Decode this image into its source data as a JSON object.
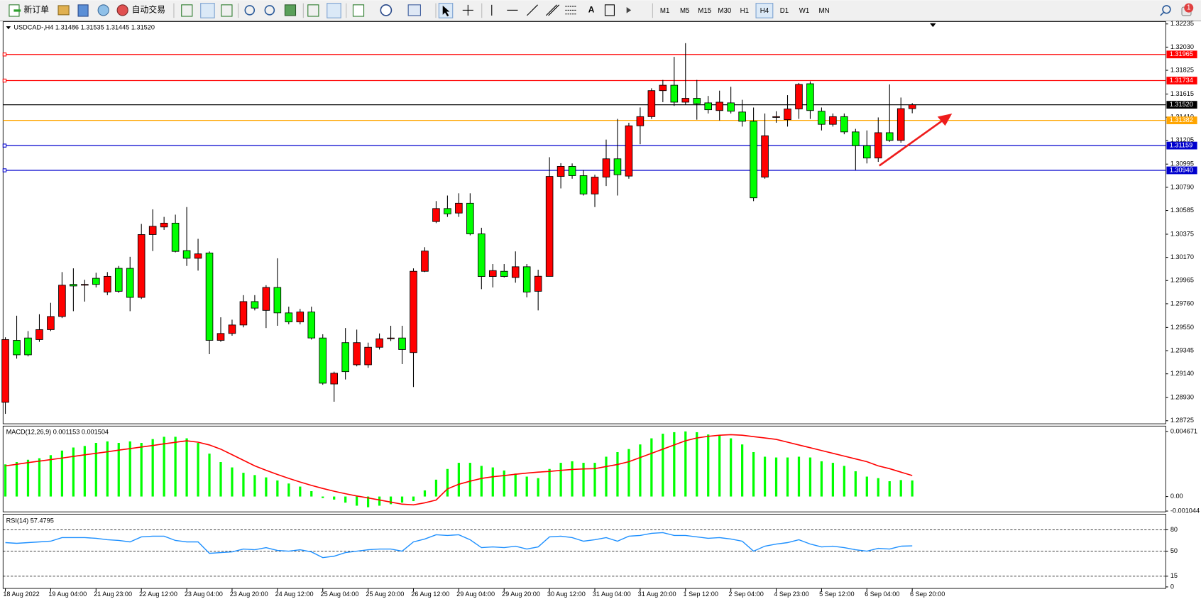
{
  "toolbar": {
    "new_order": "新订单",
    "auto_trading": "自动交易",
    "text_tool": "A",
    "timeframes": [
      "M1",
      "M5",
      "M15",
      "M30",
      "H1",
      "H4",
      "D1",
      "W1",
      "MN"
    ],
    "selected_timeframe": "H4",
    "notifications": 1
  },
  "chart_data": [
    {
      "type": "candlestick",
      "title": "USDCAD-,H4 1.31486 1.31535 1.31445 1.31520",
      "categories": [
        "18 Aug 2022",
        null,
        null,
        null,
        "19 Aug 04:00",
        null,
        null,
        null,
        "21 Aug 23:00",
        null,
        null,
        null,
        "22 Aug 12:00",
        null,
        null,
        null,
        "23 Aug 04:00",
        null,
        null,
        null,
        "23 Aug 20:00",
        null,
        null,
        null,
        "24 Aug 12:00",
        null,
        null,
        null,
        "25 Aug 04:00",
        null,
        null,
        null,
        "25 Aug 20:00",
        null,
        null,
        null,
        "26 Aug 12:00",
        null,
        null,
        null,
        "29 Aug 04:00",
        null,
        null,
        null,
        "29 Aug 20:00",
        null,
        null,
        null,
        "30 Aug 12:00",
        null,
        null,
        null,
        "31 Aug 04:00",
        null,
        null,
        null,
        "31 Aug 20:00",
        null,
        null,
        null,
        "1 Sep 12:00",
        null,
        null,
        null,
        "2 Sep 04:00",
        null,
        null,
        null,
        "4 Sep 23:00",
        null,
        null,
        null,
        "5 Sep 12:00",
        null,
        null,
        null,
        "6 Sep 04:00",
        null,
        null,
        null,
        "6 Sep 20:00"
      ],
      "open": [
        1.28888,
        1.29436,
        1.29457,
        1.29443,
        1.29531,
        1.29647,
        1.29931,
        1.29924,
        1.29985,
        1.29863,
        1.30073,
        1.30073,
        1.29816,
        1.30372,
        1.30439,
        1.30473,
        1.3023,
        1.30162,
        1.30209,
        1.29436,
        1.29497,
        1.29572,
        1.29779,
        1.29701,
        1.29904,
        1.29679,
        1.29599,
        1.29687,
        1.29457,
        1.2905,
        1.29416,
        1.2922,
        1.2922,
        1.29375,
        1.2945,
        1.29457,
        1.29328,
        1.30047,
        1.30487,
        1.30602,
        1.30562,
        1.30649,
        1.30378,
        1.30001,
        1.30047,
        1.29992,
        1.30087,
        1.2987,
        1.30002,
        1.30886,
        1.30975,
        1.30893,
        1.30731,
        1.3088,
        1.31042,
        1.30889,
        1.31334,
        1.31415,
        1.31645,
        1.31693,
        1.31543,
        1.31577,
        1.31537,
        1.31469,
        1.31537,
        1.31456,
        1.31374,
        1.3088,
        1.31408,
        1.31388,
        1.31483,
        1.31706,
        1.31463,
        1.31347,
        1.31415,
        1.3128,
        1.31158,
        1.31049,
        1.31273,
        1.31205,
        1.31486
      ],
      "high": [
        1.29463,
        1.29654,
        1.29518,
        1.29667,
        1.29768,
        1.3004,
        1.30073,
        1.29972,
        1.30034,
        1.3004,
        1.30094,
        1.30175,
        1.30466,
        1.30595,
        1.30528,
        1.30548,
        1.30615,
        1.30334,
        1.30223,
        1.2964,
        1.29619,
        1.29836,
        1.29836,
        1.29924,
        1.30162,
        1.29734,
        1.29714,
        1.29734,
        1.2949,
        1.29159,
        1.29545,
        1.29531,
        1.29416,
        1.29497,
        1.29565,
        1.29565,
        1.30073,
        1.3026,
        1.30668,
        1.30717,
        1.30737,
        1.30737,
        1.30432,
        1.30111,
        1.30111,
        1.30223,
        1.30111,
        1.30061,
        1.31056,
        1.31003,
        1.31001,
        1.30942,
        1.30901,
        1.31212,
        1.31395,
        1.31361,
        1.31496,
        1.31666,
        1.3174,
        1.31944,
        1.32065,
        1.3174,
        1.31598,
        1.31645,
        1.31679,
        1.31564,
        1.31496,
        1.31443,
        1.31463,
        1.31605,
        1.31713,
        1.31727,
        1.31496,
        1.31443,
        1.31443,
        1.31307,
        1.31293,
        1.31408,
        1.317,
        1.31584,
        1.31535
      ],
      "low": [
        1.28786,
        1.29274,
        1.29294,
        1.29423,
        1.29518,
        1.29633,
        1.29694,
        1.29779,
        1.29904,
        1.29836,
        1.29856,
        1.29694,
        1.29802,
        1.30226,
        1.30413,
        1.30214,
        1.30094,
        1.30053,
        1.29314,
        1.29423,
        1.29477,
        1.29551,
        1.29701,
        1.29545,
        1.29565,
        1.29578,
        1.29578,
        1.29443,
        1.29043,
        1.28893,
        1.2909,
        1.29206,
        1.29193,
        1.29355,
        1.2943,
        1.29226,
        1.29023,
        1.3004,
        1.30473,
        1.30528,
        1.30528,
        1.30365,
        1.29889,
        1.29904,
        1.29992,
        1.29946,
        1.29816,
        1.29701,
        1.30001,
        1.3078,
        1.30866,
        1.30717,
        1.30615,
        1.30801,
        1.30717,
        1.30866,
        1.31171,
        1.31395,
        1.31543,
        1.3151,
        1.31523,
        1.31388,
        1.31443,
        1.31381,
        1.31443,
        1.31327,
        1.30668,
        1.30866,
        1.31361,
        1.31327,
        1.31395,
        1.31395,
        1.31293,
        1.31327,
        1.31259,
        1.30942,
        1.31001,
        1.31015,
        1.31192,
        1.31185,
        1.31445
      ],
      "close": [
        1.29443,
        1.29308,
        1.29308,
        1.29531,
        1.29647,
        1.29924,
        1.29917,
        1.29931,
        1.29931,
        1.30002,
        1.2987,
        1.29816,
        1.30372,
        1.30445,
        1.30473,
        1.30223,
        1.30162,
        1.30201,
        1.29436,
        1.29497,
        1.29572,
        1.29779,
        1.29721,
        1.29904,
        1.29679,
        1.29599,
        1.29687,
        1.29457,
        1.29057,
        1.29145,
        1.29159,
        1.29416,
        1.29375,
        1.2945,
        1.29457,
        1.29355,
        1.30047,
        1.30226,
        1.30602,
        1.30555,
        1.30649,
        1.30378,
        1.30001,
        1.30053,
        1.30001,
        1.30087,
        1.29863,
        1.30003,
        1.30886,
        1.30975,
        1.30893,
        1.30731,
        1.3088,
        1.31042,
        1.30901,
        1.31334,
        1.31415,
        1.31645,
        1.31693,
        1.31543,
        1.31577,
        1.3153,
        1.31476,
        1.31543,
        1.31463,
        1.31374,
        1.30697,
        1.31246,
        1.31415,
        1.31483,
        1.317,
        1.31469,
        1.31347,
        1.31415,
        1.3128,
        1.31158,
        1.31049,
        1.31273,
        1.31205,
        1.31486,
        1.3152
      ],
      "up_color": "#ff0000",
      "down_color": "#00ff00",
      "ylim": [
        1.28698,
        1.32255
      ],
      "yticks": [
        1.32235,
        {
          "value": 1.3203,
          "label": "1.32030"
        },
        1.31825,
        1.31615,
        {
          "value": 1.3141,
          "label": "1.31410"
        },
        1.31205,
        1.30995,
        {
          "value": 1.3079,
          "label": "1.30790"
        },
        1.30585,
        1.30375,
        {
          "value": 1.3017,
          "label": "1.30170"
        },
        1.29965,
        {
          "value": 1.2976,
          "label": "1.29760"
        },
        {
          "value": 1.2955,
          "label": "1.29550"
        },
        1.29345,
        {
          "value": 1.2914,
          "label": "1.29140"
        },
        {
          "value": 1.2893,
          "label": "1.28930"
        },
        1.28725
      ],
      "levels": [
        {
          "value": 1.31965,
          "color": "#ff0000"
        },
        {
          "value": 1.31734,
          "color": "#ff0000"
        },
        {
          "value": 1.3152,
          "label": "1.31520",
          "color": "#000000"
        },
        {
          "value": 1.31382,
          "color": "#ffa500"
        },
        {
          "value": 1.31159,
          "color": "#0000cd"
        },
        {
          "value": 1.3094,
          "label": "1.30940",
          "color": "#0000cd"
        }
      ],
      "grid": false
    },
    {
      "type": "macd",
      "title": "MACD(12,26,9) 0.001153 0.001504",
      "color": "#00ff00",
      "signal_color": "#ff0000",
      "values": [
        0.002308,
        0.002473,
        0.002638,
        0.002748,
        0.002967,
        0.003297,
        0.003517,
        0.003627,
        0.003847,
        0.003956,
        0.003847,
        0.003956,
        0.003847,
        0.004121,
        0.004286,
        0.004286,
        0.004176,
        0.003847,
        0.003077,
        0.002473,
        0.002088,
        0.001703,
        0.001539,
        0.001374,
        0.001154,
        0.000934,
        0.000714,
        0.000385,
        -0.00011,
        -0.00022,
        -0.00044,
        -0.000659,
        -0.000769,
        -0.000659,
        -0.00055,
        -0.00044,
        -0.00033,
        0.00044,
        0.001209,
        0.001978,
        0.002418,
        0.002418,
        0.002198,
        0.002088,
        0.001868,
        0.001649,
        0.001429,
        0.001319,
        0.001978,
        0.002418,
        0.002528,
        0.002418,
        0.002418,
        0.002857,
        0.003187,
        0.003407,
        0.003737,
        0.004176,
        0.004506,
        0.004616,
        0.004671,
        0.004616,
        0.004451,
        0.004396,
        0.004176,
        0.003737,
        0.003187,
        0.002857,
        0.002802,
        0.002802,
        0.002857,
        0.002802,
        0.002528,
        0.002418,
        0.002198,
        0.001813,
        0.001429,
        0.001319,
        0.001099,
        0.00118,
        0.001153
      ],
      "signal": [
        0.0022,
        0.00231,
        0.00243,
        0.00254,
        0.00265,
        0.00276,
        0.00288,
        0.00299,
        0.0031,
        0.00321,
        0.00333,
        0.00344,
        0.00355,
        0.00366,
        0.00378,
        0.00389,
        0.004,
        0.0039,
        0.0037,
        0.0034,
        0.003,
        0.0026,
        0.0022,
        0.00188,
        0.00158,
        0.0013,
        0.00104,
        0.0008,
        0.00058,
        0.00038,
        0.0002,
        4e-05,
        -0.0001,
        -0.00025,
        -0.0004,
        -0.00055,
        -0.0006,
        -0.00045,
        -0.00025,
        0.00055,
        0.00088,
        0.0011,
        0.0013,
        0.00142,
        0.0015,
        0.0016,
        0.00168,
        0.00175,
        0.0018,
        0.00188,
        0.00194,
        0.00198,
        0.002,
        0.00215,
        0.0023,
        0.0025,
        0.0028,
        0.0031,
        0.0034,
        0.0037,
        0.004,
        0.0042,
        0.00432,
        0.0044,
        0.00444,
        0.0044,
        0.0043,
        0.0042,
        0.0041,
        0.0039,
        0.0037,
        0.0035,
        0.0033,
        0.0031,
        0.0029,
        0.0027,
        0.0025,
        0.0022,
        0.002,
        0.00175,
        0.001504
      ],
      "ylim": [
        -0.0011,
        0.005
      ],
      "yticks": [
        0.004671,
        {
          "value": 0,
          "label": "0.00"
        },
        -0.001044
      ]
    },
    {
      "type": "rsi",
      "title": "RSI(14) 57.4795",
      "color": "#1e90ff",
      "values": [
        62,
        61,
        62,
        63,
        64,
        69,
        69,
        69,
        68,
        66,
        65,
        63,
        70,
        71,
        71,
        65,
        63,
        63,
        47,
        48,
        49,
        53,
        52,
        55,
        51,
        50,
        52,
        49,
        41,
        43,
        48,
        50,
        52,
        53,
        53,
        50,
        63,
        67,
        73,
        72,
        73,
        66,
        55,
        56,
        55,
        57,
        53,
        56,
        70,
        71,
        69,
        64,
        66,
        69,
        64,
        71,
        72,
        75,
        76,
        72,
        72,
        70,
        68,
        69,
        67,
        64,
        50,
        57,
        60,
        62,
        66,
        60,
        56,
        57,
        55,
        52,
        50,
        54,
        53,
        57,
        57.4795
      ],
      "ylim": [
        0,
        100
      ],
      "yticks": [
        80,
        50,
        15,
        0
      ],
      "levels": [
        80,
        50,
        15
      ]
    }
  ]
}
